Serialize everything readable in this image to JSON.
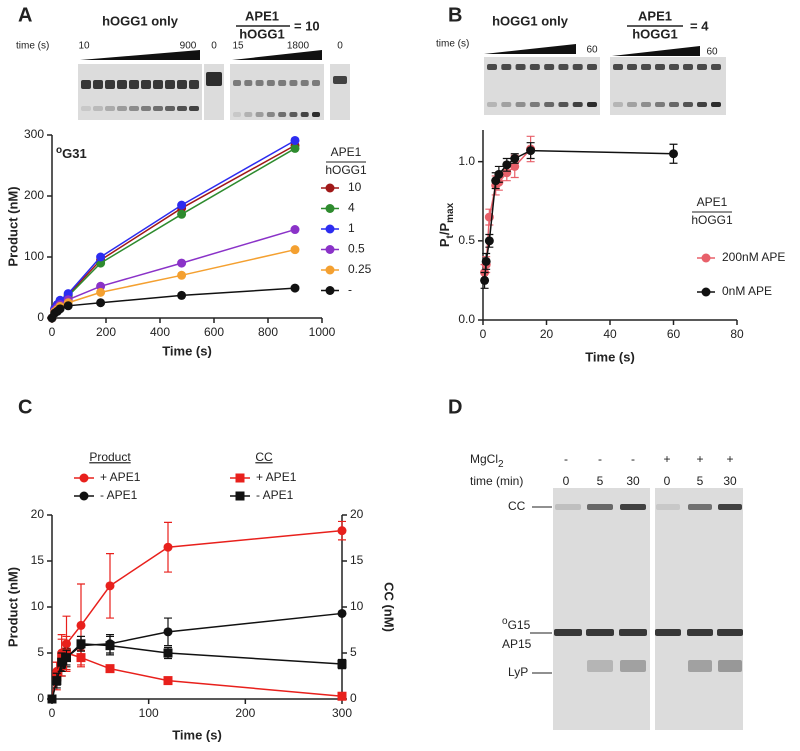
{
  "panel_labels": [
    "A",
    "B",
    "C",
    "D"
  ],
  "gels": {
    "A": {
      "title": "hOGG1 only",
      "time_label": "time (s)",
      "lanes": [
        "10",
        "900",
        "0",
        "15",
        "1800",
        "0"
      ],
      "ratio": {
        "numerator": "APE1",
        "denominator": "hOGG1",
        "value": "= 10"
      }
    },
    "B": {
      "title": "hOGG1 only",
      "time_label": "time (s)",
      "lanes": [
        "60",
        "60"
      ],
      "ratio": {
        "numerator": "APE1",
        "denominator": "hOGG1",
        "value": "= 4"
      }
    },
    "D": {
      "mgcl2": [
        "MgCl",
        "2"
      ],
      "mg_conditions": [
        "-",
        "-",
        "-",
        "+",
        "+",
        "+"
      ],
      "time_label": "time (min)",
      "times": [
        "0",
        "5",
        "30",
        "0",
        "5",
        "30"
      ],
      "bands": {
        "cc": "CC",
        "og15": [
          "o",
          "G15"
        ],
        "ap15": "AP15",
        "lyp": "LyP"
      }
    }
  },
  "chart_data": [
    {
      "type": "line",
      "annotation": [
        "o",
        "G31"
      ],
      "x_label": "Time (s)",
      "y_label": "Product (nM)",
      "xlim": [
        0,
        1000
      ],
      "xticks": [
        0,
        200,
        400,
        600,
        800,
        1000
      ],
      "ylim": [
        0,
        300
      ],
      "yticks": [
        0,
        100,
        200,
        300
      ],
      "legend_title": [
        "APE1",
        "hOGG1"
      ],
      "x": [
        0,
        10,
        20,
        30,
        60,
        180,
        480,
        900
      ],
      "series": [
        {
          "name": "10",
          "color": "#a01818",
          "marker": "circle",
          "values": [
            0,
            15,
            22,
            28,
            38,
            95,
            180,
            283
          ]
        },
        {
          "name": "4",
          "color": "#2e8b2e",
          "marker": "circle",
          "values": [
            0,
            14,
            20,
            27,
            36,
            90,
            170,
            278
          ]
        },
        {
          "name": "1",
          "color": "#2c2cf0",
          "marker": "circle",
          "values": [
            0,
            15,
            22,
            29,
            40,
            100,
            185,
            291
          ]
        },
        {
          "name": "0.5",
          "color": "#8a32c8",
          "marker": "circle",
          "values": [
            0,
            12,
            17,
            22,
            30,
            52,
            90,
            145
          ]
        },
        {
          "name": "0.25",
          "color": "#f4a030",
          "marker": "circle",
          "values": [
            0,
            10,
            14,
            19,
            25,
            42,
            70,
            112
          ]
        },
        {
          "name": "-",
          "color": "#111111",
          "marker": "circle",
          "values": [
            0,
            8,
            11,
            15,
            20,
            25,
            37,
            49
          ]
        }
      ]
    },
    {
      "type": "line",
      "x_label": "Time (s)",
      "y_label": [
        "P",
        "t",
        "/P",
        "max"
      ],
      "xlim": [
        0,
        80
      ],
      "xticks": [
        0,
        20,
        40,
        60,
        80
      ],
      "ylim": [
        0,
        1.2
      ],
      "yticks": [
        {
          "value": 0,
          "label": "0.0"
        },
        {
          "value": 0.5,
          "label": "0.5"
        },
        {
          "value": 1,
          "label": "1.0"
        }
      ],
      "legend_title": [
        "APE1",
        "hOGG1"
      ],
      "series": [
        {
          "name": "200nM APE",
          "color": "#e8606a",
          "marker": "circle",
          "x": [
            0.5,
            1,
            2,
            4,
            5,
            7.5,
            10,
            15
          ],
          "values": [
            0.3,
            0.35,
            0.65,
            0.85,
            0.87,
            0.93,
            0.97,
            1.08
          ],
          "errors": [
            0.05,
            0.05,
            0.05,
            0.06,
            0.05,
            0.05,
            0.07,
            0.08
          ]
        },
        {
          "name": "0nM APE",
          "color": "#111111",
          "marker": "circle",
          "x": [
            0.5,
            1,
            2,
            4,
            5,
            7.5,
            10,
            15,
            60
          ],
          "values": [
            0.25,
            0.37,
            0.5,
            0.88,
            0.92,
            0.98,
            1.02,
            1.07,
            1.05
          ],
          "errors": [
            0.05,
            0.05,
            0.04,
            0.05,
            0.05,
            0.04,
            0.03,
            0.05,
            0.06
          ]
        }
      ]
    },
    {
      "type": "line",
      "x_label": "Time (s)",
      "y_label": "Product (nM)",
      "y2_label": "CC (nM)",
      "xlim": [
        0,
        300
      ],
      "xticks": [
        0,
        100,
        200,
        300
      ],
      "ylim": [
        0,
        20
      ],
      "yticks": [
        0,
        5,
        10,
        15,
        20
      ],
      "y2lim": [
        0,
        20
      ],
      "y2ticks": [
        0,
        5,
        10,
        15,
        20
      ],
      "legend_titles": [
        "Product",
        "CC"
      ],
      "x": [
        0,
        5,
        10,
        15,
        30,
        60,
        120,
        300
      ],
      "series": [
        {
          "name": "+ APE1",
          "color": "#e8201c",
          "marker": "circle",
          "values": [
            0,
            3,
            5,
            6,
            8,
            12.3,
            16.5,
            18.3
          ],
          "errors": [
            0,
            1,
            2,
            3,
            4.5,
            3.5,
            2.7,
            1
          ]
        },
        {
          "name": "- APE1",
          "color": "#111111",
          "marker": "circle",
          "values": [
            0,
            2,
            3.5,
            4.5,
            5.8,
            6,
            7.3,
            9.3
          ],
          "errors": [
            0,
            0.5,
            1,
            1,
            1,
            1,
            1.5,
            0
          ]
        },
        {
          "name": "+ APE1",
          "color": "#e8201c",
          "marker": "square",
          "axis": "y2",
          "values": [
            0,
            2.5,
            4.5,
            5,
            4.5,
            3.3,
            2,
            0.3
          ],
          "errors": [
            0,
            1.5,
            2,
            1.8,
            0.8,
            0.3,
            0.3,
            0.3
          ]
        },
        {
          "name": "- APE1",
          "color": "#111111",
          "marker": "square",
          "axis": "y2",
          "values": [
            0,
            2,
            4,
            4.5,
            6,
            5.8,
            5,
            3.8
          ],
          "errors": [
            0,
            0.8,
            1,
            0.8,
            0.8,
            1,
            0.6,
            0.5
          ]
        }
      ]
    }
  ]
}
